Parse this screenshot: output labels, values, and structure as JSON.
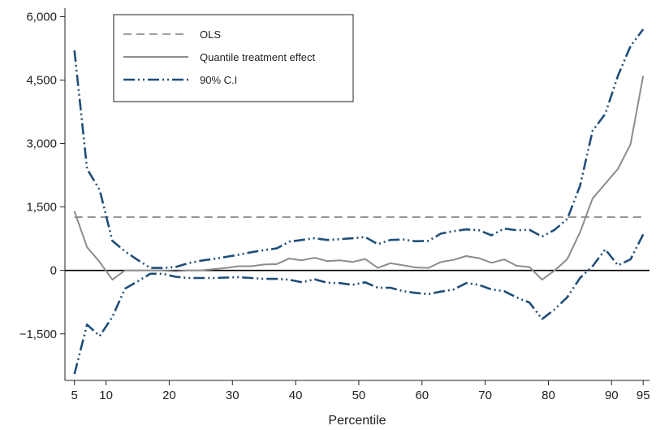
{
  "chart_data": {
    "type": "line",
    "title": "",
    "xlabel": "Percentile",
    "ylabel": "",
    "xlim": [
      3.5,
      96
    ],
    "ylim": [
      -2600,
      6200
    ],
    "xticks": [
      5,
      10,
      20,
      30,
      40,
      50,
      60,
      70,
      80,
      90,
      95
    ],
    "yticks": [
      -1500,
      0,
      1500,
      3000,
      4500,
      6000
    ],
    "ytick_labels": [
      "−1,500",
      "0",
      "1,500",
      "3,000",
      "4,500",
      "6,000"
    ],
    "grid": false,
    "legend_position": "top-left",
    "zero_line": 0,
    "x": [
      5,
      7,
      9,
      11,
      13,
      15,
      17,
      19,
      21,
      23,
      25,
      27,
      29,
      31,
      33,
      35,
      37,
      39,
      41,
      43,
      45,
      47,
      49,
      51,
      53,
      55,
      57,
      59,
      61,
      63,
      65,
      67,
      69,
      71,
      73,
      75,
      77,
      79,
      81,
      83,
      85,
      87,
      89,
      91,
      93,
      95
    ],
    "series": [
      {
        "name": "OLS",
        "style": "dashed",
        "color": "#808080",
        "values": [
          1260,
          1260,
          1260,
          1260,
          1260,
          1260,
          1260,
          1260,
          1260,
          1260,
          1260,
          1260,
          1260,
          1260,
          1260,
          1260,
          1260,
          1260,
          1260,
          1260,
          1260,
          1260,
          1260,
          1260,
          1260,
          1260,
          1260,
          1260,
          1260,
          1260,
          1260,
          1260,
          1260,
          1260,
          1260,
          1260,
          1260,
          1260,
          1260,
          1260,
          1260,
          1260,
          1260,
          1260,
          1260,
          1260
        ]
      },
      {
        "name": "Quantile treatment effect",
        "style": "solid",
        "color": "#8c8c8c",
        "values": [
          1400,
          550,
          200,
          -220,
          0,
          0,
          0,
          0,
          -20,
          0,
          0,
          30,
          60,
          100,
          100,
          140,
          150,
          280,
          240,
          300,
          220,
          240,
          200,
          270,
          60,
          170,
          120,
          70,
          60,
          200,
          250,
          340,
          290,
          180,
          260,
          110,
          80,
          -220,
          0,
          270,
          900,
          1700,
          2050,
          2400,
          2980,
          4600
        ]
      },
      {
        "name": "90% C.I",
        "style": "dashdotdot",
        "color": "#1f4e79",
        "values": [
          5200,
          2400,
          1900,
          700,
          450,
          250,
          60,
          60,
          80,
          170,
          230,
          270,
          320,
          370,
          430,
          480,
          520,
          680,
          720,
          760,
          720,
          740,
          760,
          790,
          620,
          720,
          730,
          690,
          700,
          870,
          930,
          970,
          950,
          830,
          990,
          950,
          960,
          800,
          960,
          1220,
          2000,
          3300,
          3700,
          4600,
          5300,
          5700
        ]
      },
      {
        "name": "",
        "style": "dashdotdot",
        "color": "#1f4e79",
        "values": [
          -2450,
          -1280,
          -1550,
          -1100,
          -430,
          -260,
          -80,
          -80,
          -150,
          -180,
          -180,
          -180,
          -170,
          -160,
          -180,
          -200,
          -200,
          -220,
          -280,
          -210,
          -290,
          -300,
          -340,
          -280,
          -410,
          -410,
          -490,
          -530,
          -560,
          -500,
          -450,
          -300,
          -340,
          -450,
          -490,
          -640,
          -760,
          -1150,
          -920,
          -630,
          -180,
          100,
          500,
          120,
          260,
          850
        ]
      }
    ]
  }
}
